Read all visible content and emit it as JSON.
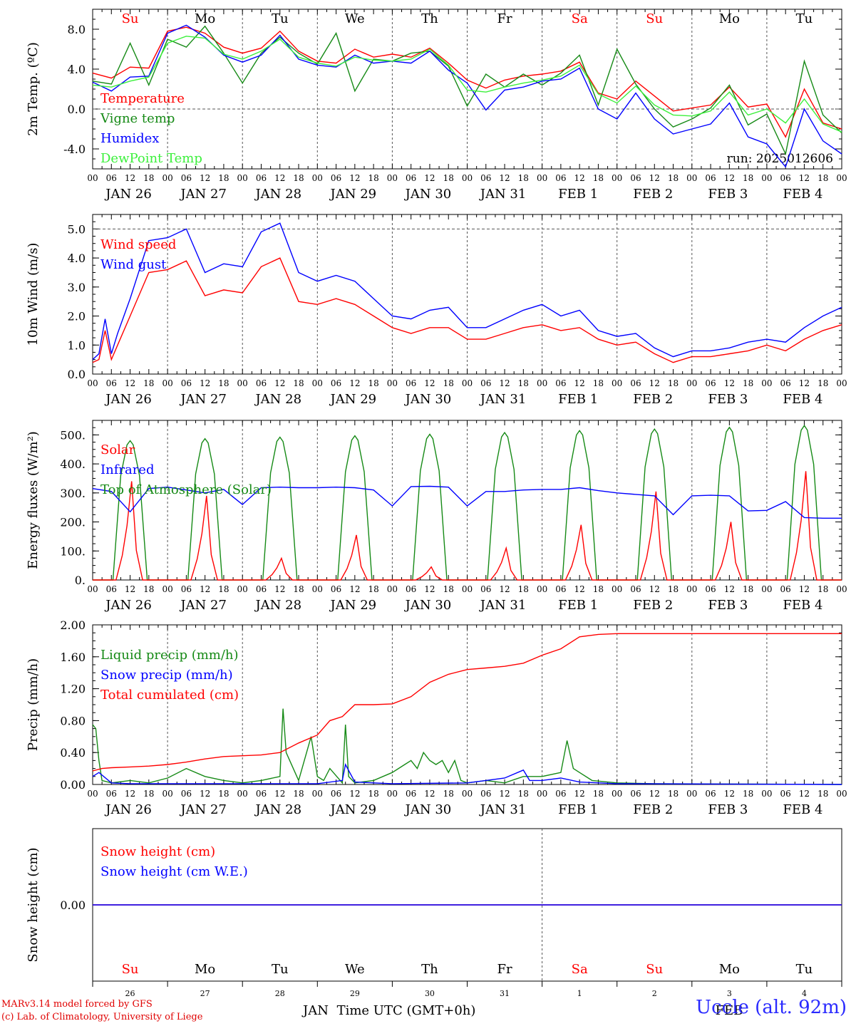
{
  "colors": {
    "red": "#ff0000",
    "green": "#168a16",
    "blue": "#0000ff",
    "lightgreen": "#3cf03c",
    "grid": "#444444"
  },
  "hour_ticks": [
    "00",
    "06",
    "12",
    "18"
  ],
  "date_labels": [
    "JAN 26",
    "JAN 27",
    "JAN 28",
    "JAN 29",
    "JAN 30",
    "JAN 31",
    "FEB  1",
    "FEB  2",
    "FEB  3",
    "FEB  4"
  ],
  "day_labels": [
    {
      "text": "Su",
      "color": "red"
    },
    {
      "text": "Mo",
      "color": "black"
    },
    {
      "text": "Tu",
      "color": "black"
    },
    {
      "text": "We",
      "color": "black"
    },
    {
      "text": "Th",
      "color": "black"
    },
    {
      "text": "Fr",
      "color": "black"
    },
    {
      "text": "Sa",
      "color": "red"
    },
    {
      "text": "Su",
      "color": "red"
    },
    {
      "text": "Mo",
      "color": "black"
    },
    {
      "text": "Tu",
      "color": "black"
    }
  ],
  "bottom_day_numbers": [
    "26",
    "27",
    "28",
    "29",
    "30",
    "31",
    "1",
    "2",
    "3",
    "4"
  ],
  "bottom_axis": {
    "left_month": "JAN",
    "right_month": "FEB",
    "xlabel": "Time UTC (GMT+0h)"
  },
  "footer": {
    "credit_line1": "MARv3.14 model forced by GFS",
    "credit_line2": "(c) Lab. of Climatology, University of Liege",
    "station": "Uccle (alt. 92m)"
  },
  "chart_data": [
    {
      "type": "line",
      "ylabel": "2m Temp. (ºC)",
      "ylim": [
        -6,
        10
      ],
      "yticks": [
        "8.0",
        "4.0",
        "0.0",
        "-4.0"
      ],
      "ytick_values": [
        8,
        4,
        0,
        -4
      ],
      "x_unit": "hours since JAN 26 00 UTC",
      "xlim": [
        0,
        240
      ],
      "run_label": "run: 2025012606",
      "legend": [
        "Temperature",
        "Vigne temp",
        "Humidex",
        "DewPoint Temp"
      ],
      "series": [
        {
          "name": "Temperature",
          "color": "red",
          "x": [
            0,
            6,
            12,
            18,
            24,
            30,
            36,
            42,
            48,
            54,
            60,
            66,
            72,
            78,
            84,
            90,
            96,
            102,
            108,
            114,
            120,
            126,
            132,
            138,
            144,
            150,
            156,
            162,
            168,
            174,
            180,
            186,
            192,
            198,
            204,
            210,
            216,
            222,
            228,
            234,
            240
          ],
          "y": [
            3.6,
            3.1,
            4.2,
            4.1,
            7.8,
            8.2,
            7.6,
            6.2,
            5.6,
            6.1,
            7.8,
            5.8,
            4.8,
            4.6,
            6.0,
            5.2,
            5.5,
            5.2,
            6.1,
            4.6,
            2.9,
            2.1,
            2.9,
            3.3,
            3.5,
            3.8,
            4.7,
            1.6,
            1.0,
            2.8,
            1.3,
            -0.2,
            0.1,
            0.4,
            2.2,
            0.2,
            0.5,
            -2.8,
            2.0,
            -1.4,
            -2.0
          ]
        },
        {
          "name": "Vigne temp",
          "color": "green",
          "x": [
            0,
            6,
            12,
            18,
            24,
            30,
            36,
            42,
            48,
            54,
            60,
            66,
            72,
            78,
            84,
            90,
            96,
            102,
            108,
            114,
            120,
            126,
            132,
            138,
            144,
            150,
            156,
            162,
            168,
            174,
            180,
            186,
            192,
            198,
            204,
            210,
            216,
            222,
            228,
            234,
            240
          ],
          "y": [
            2.8,
            2.5,
            6.6,
            2.4,
            7.0,
            6.2,
            8.3,
            5.6,
            2.6,
            5.6,
            7.2,
            5.6,
            4.5,
            7.6,
            1.8,
            5.0,
            4.8,
            5.6,
            5.8,
            4.3,
            0.3,
            3.5,
            2.2,
            3.5,
            2.4,
            3.6,
            5.4,
            0.4,
            6.0,
            2.5,
            0.0,
            -1.8,
            -1.0,
            0.1,
            2.4,
            -1.6,
            -0.5,
            -4.5,
            4.8,
            -0.6,
            -2.4
          ]
        },
        {
          "name": "Humidex",
          "color": "blue",
          "x": [
            0,
            6,
            12,
            18,
            24,
            30,
            36,
            42,
            48,
            54,
            60,
            66,
            72,
            78,
            84,
            90,
            96,
            102,
            108,
            114,
            120,
            126,
            132,
            138,
            144,
            150,
            156,
            162,
            168,
            174,
            180,
            186,
            192,
            198,
            204,
            210,
            216,
            222,
            228,
            234,
            240
          ],
          "y": [
            2.7,
            1.8,
            3.2,
            3.3,
            7.6,
            8.4,
            7.2,
            5.4,
            4.7,
            5.4,
            7.4,
            5.0,
            4.4,
            4.2,
            5.4,
            4.6,
            4.8,
            4.6,
            5.8,
            3.9,
            2.6,
            -0.1,
            1.9,
            2.2,
            2.8,
            3.0,
            4.1,
            0.0,
            -1.0,
            1.6,
            -1.0,
            -2.5,
            -2.0,
            -1.5,
            0.6,
            -2.8,
            -3.5,
            -5.8,
            0.0,
            -3.2,
            -4.5
          ]
        },
        {
          "name": "DewPoint Temp",
          "color": "lightgreen",
          "x": [
            0,
            6,
            12,
            18,
            24,
            30,
            36,
            42,
            48,
            54,
            60,
            66,
            72,
            78,
            84,
            90,
            96,
            102,
            108,
            114,
            120,
            126,
            132,
            138,
            144,
            150,
            156,
            162,
            168,
            174,
            180,
            186,
            192,
            198,
            204,
            210,
            216,
            222,
            228,
            234,
            240
          ],
          "y": [
            2.4,
            2.2,
            2.8,
            3.2,
            6.6,
            7.3,
            7.1,
            5.5,
            5.0,
            5.8,
            7.0,
            5.2,
            4.6,
            4.3,
            5.2,
            4.9,
            4.8,
            5.0,
            6.0,
            4.4,
            1.9,
            1.7,
            2.2,
            2.6,
            2.9,
            3.3,
            4.4,
            1.5,
            0.6,
            2.3,
            0.4,
            -0.6,
            -0.7,
            -0.2,
            1.7,
            -0.6,
            0.0,
            -1.4,
            1.0,
            -1.5,
            -2.3
          ]
        }
      ]
    },
    {
      "type": "line",
      "ylabel": "10m Wind (m/s)",
      "ylim": [
        0,
        5.5
      ],
      "yticks": [
        "5.0",
        "4.0",
        "3.0",
        "2.0",
        "1.0",
        "0.0"
      ],
      "ytick_values": [
        5,
        4,
        3,
        2,
        1,
        0
      ],
      "xlim": [
        0,
        240
      ],
      "legend": [
        "Wind speed",
        "Wind gust"
      ],
      "series": [
        {
          "name": "Wind speed",
          "color": "red",
          "x": [
            0,
            2,
            4,
            6,
            8,
            12,
            18,
            24,
            30,
            36,
            42,
            48,
            54,
            60,
            66,
            72,
            78,
            84,
            90,
            96,
            102,
            108,
            114,
            120,
            126,
            132,
            138,
            144,
            150,
            156,
            162,
            168,
            174,
            180,
            186,
            192,
            198,
            204,
            210,
            216,
            222,
            228,
            234,
            240
          ],
          "y": [
            0.4,
            0.5,
            1.5,
            0.5,
            1.0,
            2.0,
            3.5,
            3.6,
            3.9,
            2.7,
            2.9,
            2.8,
            3.7,
            4.0,
            2.5,
            2.4,
            2.6,
            2.4,
            2.0,
            1.6,
            1.4,
            1.6,
            1.6,
            1.2,
            1.2,
            1.4,
            1.6,
            1.7,
            1.5,
            1.6,
            1.2,
            1.0,
            1.1,
            0.7,
            0.4,
            0.6,
            0.6,
            0.7,
            0.8,
            1.0,
            0.8,
            1.2,
            1.5,
            1.7
          ]
        },
        {
          "name": "Wind gust",
          "color": "blue",
          "x": [
            0,
            2,
            4,
            6,
            8,
            12,
            18,
            24,
            30,
            36,
            42,
            48,
            54,
            60,
            66,
            72,
            78,
            84,
            90,
            96,
            102,
            108,
            114,
            120,
            126,
            132,
            138,
            144,
            150,
            156,
            162,
            168,
            174,
            180,
            186,
            192,
            198,
            204,
            210,
            216,
            222,
            228,
            234,
            240
          ],
          "y": [
            0.5,
            0.7,
            1.9,
            0.7,
            1.4,
            2.6,
            4.6,
            4.7,
            5.0,
            3.5,
            3.8,
            3.7,
            4.9,
            5.2,
            3.5,
            3.2,
            3.4,
            3.2,
            2.6,
            2.0,
            1.9,
            2.2,
            2.3,
            1.6,
            1.6,
            1.9,
            2.2,
            2.4,
            2.0,
            2.2,
            1.5,
            1.3,
            1.4,
            0.9,
            0.6,
            0.8,
            0.8,
            0.9,
            1.1,
            1.2,
            1.1,
            1.6,
            2.0,
            2.3
          ]
        }
      ]
    },
    {
      "type": "line",
      "ylabel": "Energy fluxes (W/m²)",
      "ylim": [
        0,
        550
      ],
      "yticks": [
        "500.",
        "400.",
        "300.",
        "200.",
        "100.",
        "0."
      ],
      "ytick_values": [
        500,
        400,
        300,
        200,
        100,
        0
      ],
      "xlim": [
        0,
        240
      ],
      "legend": [
        "Solar",
        "Infrared",
        "Top of Atmosphere (Solar)"
      ],
      "toa_peaks": [
        480,
        487,
        492,
        497,
        502,
        508,
        515,
        520,
        526,
        532
      ],
      "solar_peaks": [
        340,
        290,
        75,
        155,
        45,
        110,
        190,
        305,
        200,
        375
      ],
      "series": [
        {
          "name": "Infrared",
          "color": "blue",
          "x": [
            0,
            6,
            12,
            18,
            24,
            30,
            36,
            42,
            48,
            54,
            60,
            66,
            72,
            78,
            84,
            90,
            96,
            102,
            108,
            114,
            120,
            126,
            132,
            138,
            144,
            150,
            156,
            162,
            168,
            174,
            180,
            186,
            192,
            198,
            204,
            210,
            216,
            222,
            228,
            234,
            240
          ],
          "y": [
            315,
            305,
            235,
            315,
            320,
            310,
            300,
            312,
            260,
            318,
            320,
            318,
            318,
            320,
            318,
            310,
            255,
            322,
            323,
            320,
            255,
            305,
            305,
            310,
            312,
            312,
            318,
            308,
            300,
            295,
            290,
            225,
            290,
            292,
            290,
            238,
            240,
            270,
            215,
            213,
            213
          ]
        }
      ]
    },
    {
      "type": "line",
      "ylabel": "Precip (mm/h)",
      "ylim": [
        0,
        2.0
      ],
      "yticks": [
        "2.00",
        "1.60",
        "1.20",
        "0.80",
        "0.40",
        "0.00"
      ],
      "ytick_values": [
        2.0,
        1.6,
        1.2,
        0.8,
        0.4,
        0.0
      ],
      "xlim": [
        0,
        240
      ],
      "legend": [
        "Liquid precip (mm/h)",
        "Snow precip (mm/h)",
        "Total cumulated (cm)"
      ],
      "series": [
        {
          "name": "Liquid precip (mm/h)",
          "color": "green",
          "x": [
            0,
            1,
            2,
            3,
            6,
            12,
            18,
            24,
            30,
            36,
            42,
            48,
            54,
            60,
            61,
            62,
            66,
            70,
            72,
            74,
            76,
            80,
            81,
            82,
            84,
            90,
            96,
            100,
            102,
            104,
            106,
            108,
            110,
            112,
            114,
            116,
            118,
            120,
            126,
            132,
            138,
            144,
            150,
            152,
            154,
            156,
            160,
            168,
            180,
            240
          ],
          "y": [
            0.75,
            0.7,
            0.3,
            0.05,
            0.02,
            0.05,
            0.02,
            0.08,
            0.2,
            0.1,
            0.05,
            0.02,
            0.05,
            0.1,
            0.95,
            0.4,
            0.05,
            0.6,
            0.1,
            0.05,
            0.2,
            0.02,
            0.75,
            0.1,
            0.02,
            0.05,
            0.15,
            0.25,
            0.3,
            0.2,
            0.4,
            0.3,
            0.25,
            0.3,
            0.15,
            0.3,
            0.05,
            0.02,
            0.05,
            0.02,
            0.1,
            0.1,
            0.15,
            0.55,
            0.2,
            0.15,
            0.05,
            0.02,
            0.01,
            0.0
          ]
        },
        {
          "name": "Snow precip (mm/h)",
          "color": "blue",
          "x": [
            0,
            2,
            6,
            12,
            24,
            48,
            72,
            80,
            81,
            84,
            96,
            120,
            126,
            132,
            138,
            140,
            144,
            150,
            156,
            168,
            240
          ],
          "y": [
            0.1,
            0.15,
            0.02,
            0.01,
            0.01,
            0.01,
            0.01,
            0.05,
            0.25,
            0.03,
            0.01,
            0.02,
            0.05,
            0.08,
            0.18,
            0.05,
            0.05,
            0.08,
            0.03,
            0.01,
            0.0
          ]
        },
        {
          "name": "Total cumulated (cm)",
          "color": "red",
          "x": [
            0,
            3,
            6,
            12,
            18,
            24,
            30,
            36,
            42,
            48,
            54,
            60,
            66,
            72,
            76,
            80,
            84,
            90,
            96,
            102,
            108,
            114,
            120,
            126,
            132,
            138,
            144,
            150,
            156,
            162,
            168,
            174,
            180,
            240
          ],
          "y": [
            0.17,
            0.2,
            0.21,
            0.22,
            0.23,
            0.25,
            0.28,
            0.32,
            0.35,
            0.36,
            0.37,
            0.4,
            0.52,
            0.62,
            0.8,
            0.85,
            1.0,
            1.0,
            1.01,
            1.1,
            1.28,
            1.38,
            1.44,
            1.46,
            1.48,
            1.52,
            1.62,
            1.7,
            1.85,
            1.88,
            1.89,
            1.89,
            1.89,
            1.89
          ]
        }
      ]
    },
    {
      "type": "line",
      "ylabel": "Snow height (cm)",
      "ylim": [
        -1,
        1
      ],
      "yticks": [
        "0.00"
      ],
      "ytick_values": [
        0
      ],
      "xlim": [
        0,
        240
      ],
      "legend": [
        "Snow height (cm)",
        "Snow height (cm W.E.)"
      ],
      "series": [
        {
          "name": "Snow height (cm)",
          "color": "red",
          "x": [
            0,
            240
          ],
          "y": [
            0,
            0
          ]
        },
        {
          "name": "Snow height (cm W.E.)",
          "color": "blue",
          "x": [
            0,
            240
          ],
          "y": [
            0,
            0
          ]
        }
      ]
    }
  ]
}
